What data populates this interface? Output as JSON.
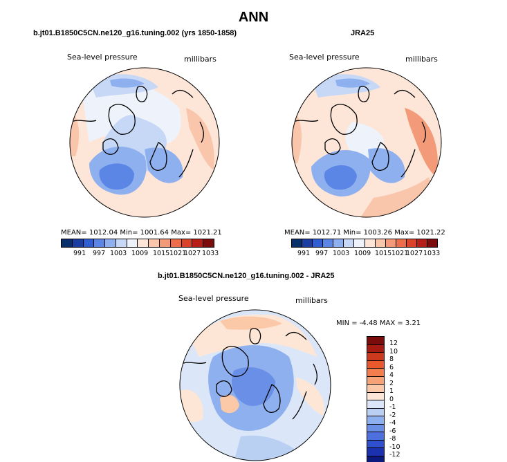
{
  "title": "ANN",
  "panel_left": {
    "case": "b.jt01.B1850C5CN.ne120_g16.tuning.002 (yrs 1850-1858)",
    "variable": "Sea-level pressure",
    "units": "millibars",
    "stats": "MEAN= 1012.04   Min= 1001.64   Max= 1021.21",
    "colorbar_ticks": [
      "991",
      "997",
      "1003",
      "1009",
      "1015",
      "1021",
      "1027",
      "1033"
    ]
  },
  "panel_right": {
    "case": "JRA25",
    "variable": "Sea-level pressure",
    "units": "millibars",
    "stats": "MEAN= 1012.71   Min= 1003.26   Max= 1021.22",
    "colorbar_ticks": [
      "991",
      "997",
      "1003",
      "1009",
      "1015",
      "1021",
      "1027",
      "1033"
    ]
  },
  "panel_diff": {
    "case": "b.jt01.B1850C5CN.ne120_g16.tuning.002 - JRA25",
    "variable": "Sea-level pressure",
    "units": "millibars",
    "stats": "MIN =   -4.48  MAX =    3.21",
    "colorbar_ticks": [
      "12",
      "10",
      "8",
      "6",
      "4",
      "2",
      "1",
      "0",
      "-1",
      "-2",
      "-4",
      "-6",
      "-8",
      "-10",
      "-12"
    ]
  },
  "colors": {
    "abs_scale": [
      "#08306b",
      "#1b3fa0",
      "#2f5fd0",
      "#5b86e5",
      "#8fb0ee",
      "#c6d8f6",
      "#eef3fb",
      "#fde6d8",
      "#f9c6ab",
      "#f39a78",
      "#ec6d4a",
      "#d9432a",
      "#b51f18",
      "#7a0c0c"
    ],
    "diff_scale": [
      "#7a0c0c",
      "#a51c12",
      "#cc3a1e",
      "#e85a2c",
      "#f27d4e",
      "#f7a276",
      "#fbc8a8",
      "#fde6d6",
      "#dbe7f8",
      "#b9d0f3",
      "#8fb0ee",
      "#6a8fe6",
      "#4d70de",
      "#2f4fcf",
      "#1a32b0",
      "#0b1a7e"
    ],
    "land_line": "#000000"
  }
}
